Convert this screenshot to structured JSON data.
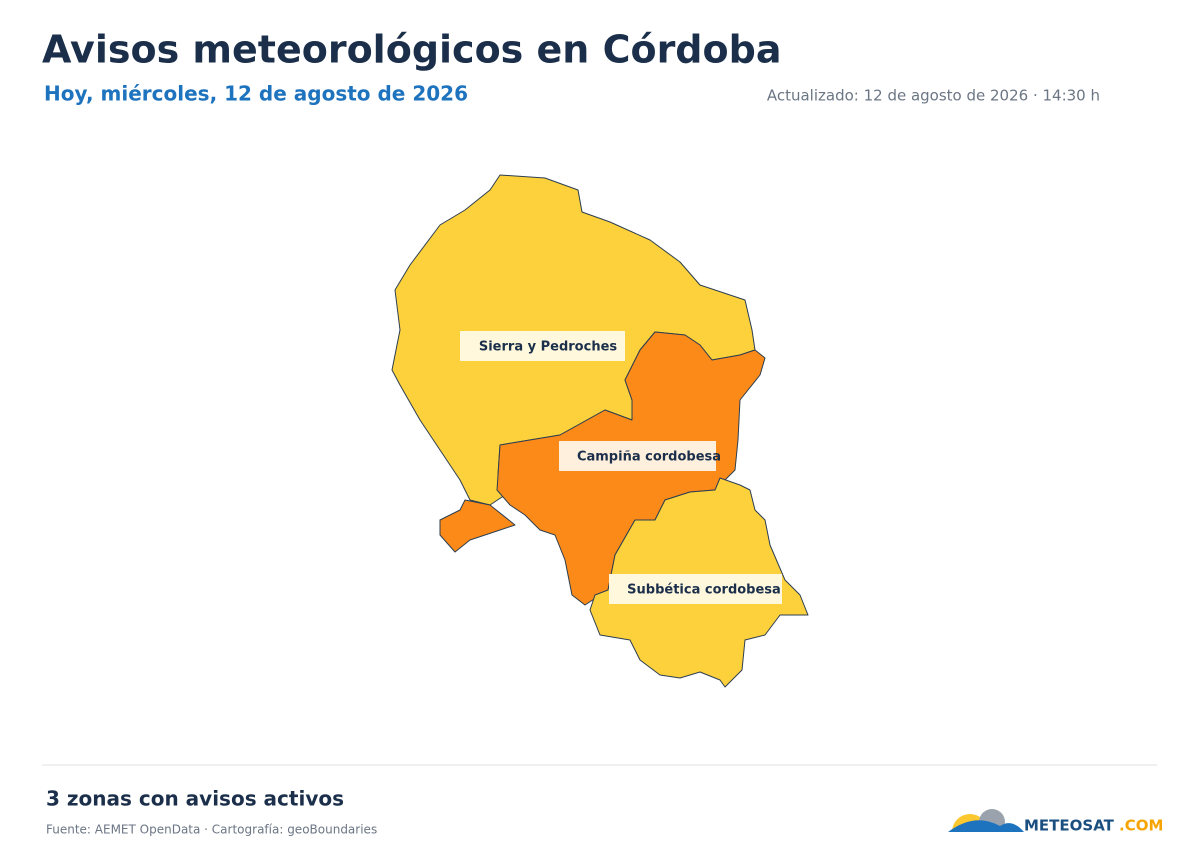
{
  "header": {
    "title": "Avisos meteorológicos en Córdoba",
    "subtitle": "Hoy, miércoles, 12 de agosto de 2026",
    "updated": "Actualizado: 12 de agosto de 2026 · 14:30 h"
  },
  "map": {
    "zones": [
      {
        "label": "Sierra y Pedroches"
      },
      {
        "label": "Campiña cordobesa"
      },
      {
        "label": "Subbética cordobesa"
      }
    ]
  },
  "footer": {
    "summary": "3 zonas con avisos activos",
    "source": "Fuente: AEMET OpenData · Cartografía: geoBoundaries",
    "logo": {
      "main": "METEOSAT",
      "suffix": ".COM"
    }
  }
}
